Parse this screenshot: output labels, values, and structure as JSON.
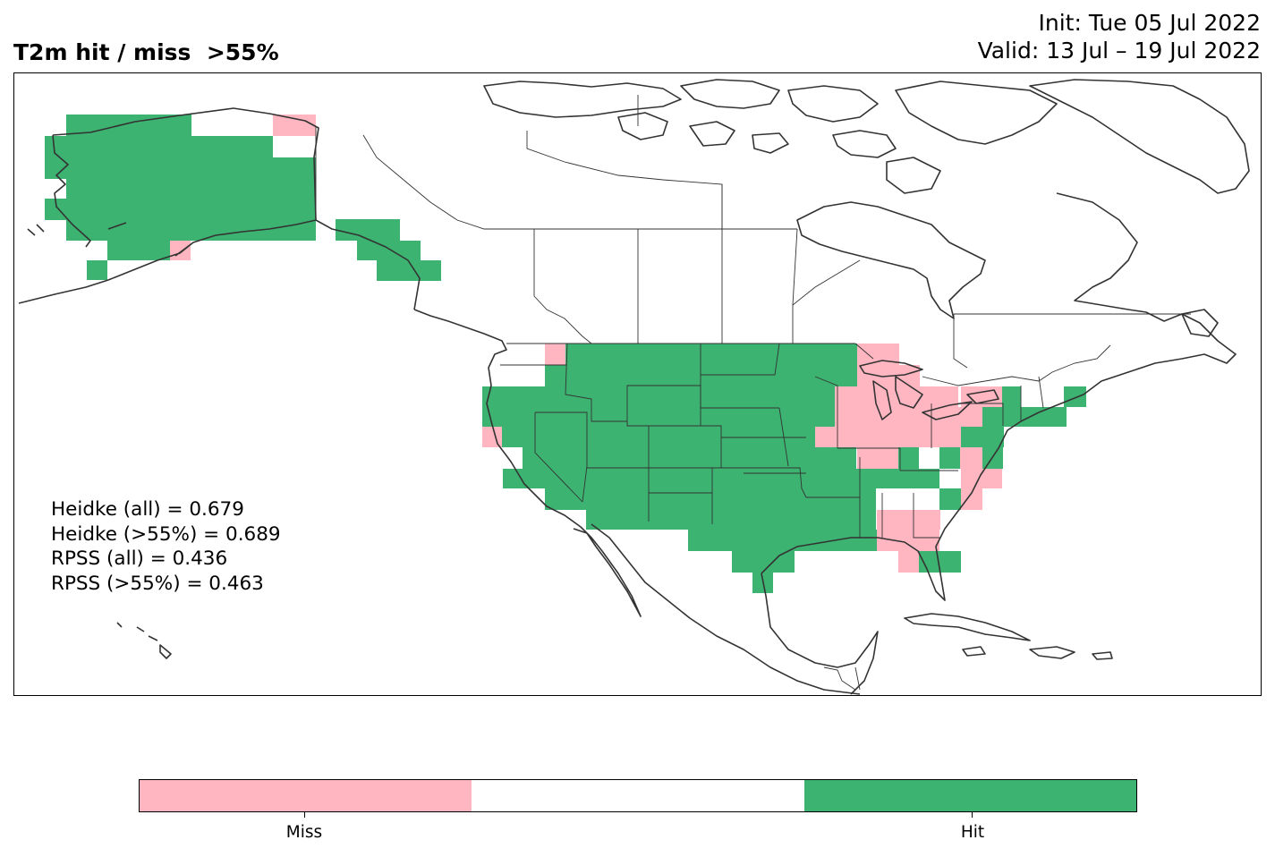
{
  "title": "T2m hit / miss  >55%",
  "init_label": "Init: Tue 05 Jul 2022",
  "valid_label": "Valid: 13 Jul – 19 Jul 2022",
  "stats": [
    "Heidke (all) = 0.679",
    "Heidke (>55%) = 0.689",
    "RPSS (all) = 0.436",
    "RPSS (>55%) = 0.463"
  ],
  "colorbar": {
    "segments": [
      {
        "label": "Miss",
        "color": "#ffb6c1"
      },
      {
        "label": "",
        "color": "#ffffff"
      },
      {
        "label": "Hit",
        "color": "#3cb371"
      }
    ]
  },
  "colors": {
    "hit": "#3cb371",
    "miss": "#ffb6c1",
    "coastline": "#333333"
  }
}
